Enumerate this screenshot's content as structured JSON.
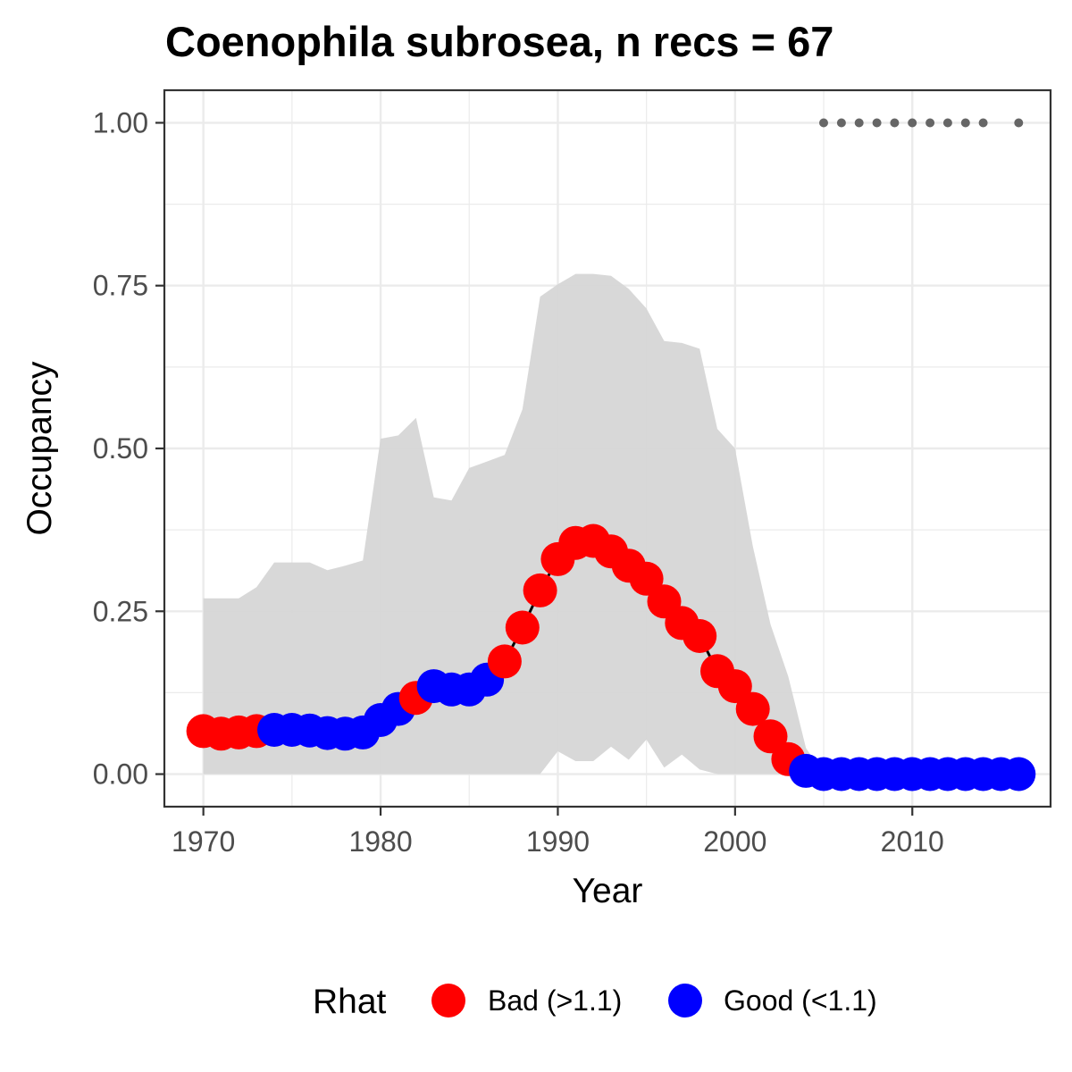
{
  "chart_data": {
    "type": "line",
    "title": "Coenophila subrosea, n recs = 67",
    "xlabel": "Year",
    "ylabel": "Occupancy",
    "xlim": [
      1967.8,
      2017.8
    ],
    "ylim": [
      -0.05,
      1.05
    ],
    "x_ticks": [
      1970,
      1980,
      1990,
      2000,
      2010
    ],
    "x_tick_labels": [
      "1970",
      "1980",
      "1990",
      "2000",
      "2010"
    ],
    "y_ticks": [
      0,
      0.25,
      0.5,
      0.75,
      1.0
    ],
    "y_tick_labels": [
      "0.00",
      "0.25",
      "0.50",
      "0.75",
      "1.00"
    ],
    "grid": true,
    "legend": {
      "title": "Rhat",
      "position": "bottom",
      "entries": [
        {
          "key": "bad",
          "label": "Bad (>1.1)",
          "color": "#ff0000"
        },
        {
          "key": "good",
          "label": "Good (<1.1)",
          "color": "#0000ff"
        }
      ]
    },
    "x": [
      1970,
      1971,
      1972,
      1973,
      1974,
      1975,
      1976,
      1977,
      1978,
      1979,
      1980,
      1981,
      1982,
      1983,
      1984,
      1985,
      1986,
      1987,
      1988,
      1989,
      1990,
      1991,
      1992,
      1993,
      1994,
      1995,
      1996,
      1997,
      1998,
      1999,
      2000,
      2001,
      2002,
      2003,
      2004,
      2005,
      2006,
      2007,
      2008,
      2009,
      2010,
      2011,
      2012,
      2013,
      2014,
      2015,
      2016
    ],
    "mean": [
      0.066,
      0.062,
      0.064,
      0.066,
      0.068,
      0.068,
      0.067,
      0.063,
      0.062,
      0.064,
      0.083,
      0.1,
      0.117,
      0.135,
      0.13,
      0.13,
      0.145,
      0.173,
      0.225,
      0.282,
      0.33,
      0.355,
      0.358,
      0.342,
      0.32,
      0.3,
      0.265,
      0.232,
      0.212,
      0.158,
      0.135,
      0.1,
      0.058,
      0.023,
      0.005,
      0.0,
      0.0,
      0.0,
      0.0,
      0.0,
      0.0,
      0.0,
      0.0,
      0.0,
      0.0,
      0.0,
      0.0
    ],
    "lower": [
      0,
      0,
      0,
      0,
      0,
      0,
      0,
      0,
      0,
      0,
      0,
      0,
      0,
      0,
      0,
      0,
      0,
      0,
      0,
      0,
      0.035,
      0.02,
      0.02,
      0.042,
      0.022,
      0.053,
      0.01,
      0.03,
      0.007,
      0,
      0,
      0,
      0,
      0,
      0,
      0,
      0,
      0,
      0,
      0,
      0,
      0,
      0,
      0,
      0,
      0,
      0
    ],
    "upper": [
      0.27,
      0.27,
      0.27,
      0.287,
      0.325,
      0.325,
      0.325,
      0.313,
      0.32,
      0.328,
      0.515,
      0.52,
      0.547,
      0.425,
      0.42,
      0.47,
      0.48,
      0.49,
      0.56,
      0.733,
      0.752,
      0.768,
      0.768,
      0.765,
      0.745,
      0.715,
      0.665,
      0.662,
      0.653,
      0.53,
      0.5,
      0.35,
      0.23,
      0.15,
      0.04,
      0.0,
      0.0,
      0.0,
      0.0,
      0.0,
      0.0,
      0.0,
      0.0,
      0.0,
      0.0,
      0.0,
      0.0
    ],
    "rhat": [
      "bad",
      "bad",
      "bad",
      "bad",
      "good",
      "good",
      "good",
      "good",
      "good",
      "good",
      "good",
      "good",
      "bad",
      "good",
      "good",
      "good",
      "good",
      "bad",
      "bad",
      "bad",
      "bad",
      "bad",
      "bad",
      "bad",
      "bad",
      "bad",
      "bad",
      "bad",
      "bad",
      "bad",
      "bad",
      "bad",
      "bad",
      "bad",
      "good",
      "good",
      "good",
      "good",
      "good",
      "good",
      "good",
      "good",
      "good",
      "good",
      "good",
      "good",
      "good"
    ],
    "record_years": [
      2005,
      2006,
      2007,
      2008,
      2009,
      2010,
      2011,
      2012,
      2013,
      2014,
      2016
    ],
    "record_value": 1.0,
    "colors": {
      "ribbon": "#d6d6d6",
      "line": "#000000",
      "records": "#666666",
      "bad": "#ff0000",
      "good": "#0000ff"
    }
  }
}
